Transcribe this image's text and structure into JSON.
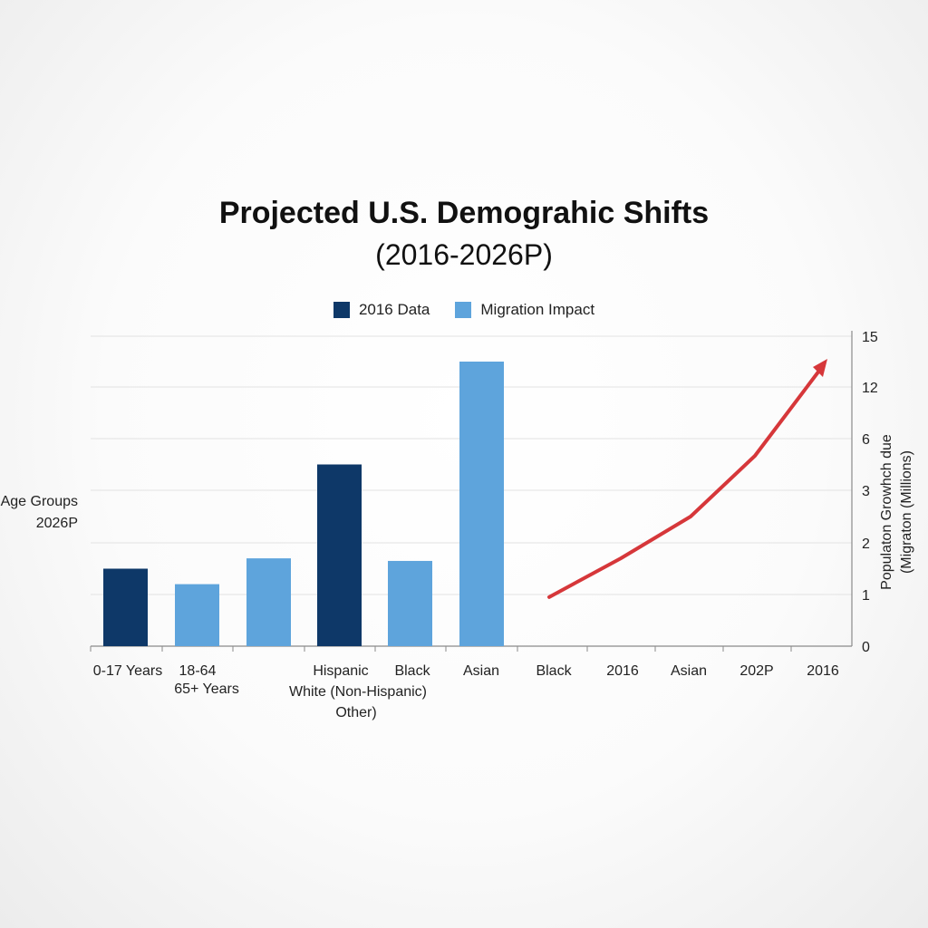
{
  "colors": {
    "dark_blue": "#0e3868",
    "light_blue": "#5ea4dc",
    "trend_red": "#d6373a",
    "grid": "#e2e2e2",
    "axis": "#8a8a8a"
  },
  "chart_data": {
    "type": "bar",
    "title": "Projected U.S. Demograhic Shifts",
    "subtitle": "(2016-2026P)",
    "legend": [
      {
        "label": "2016 Data",
        "color": "#0e3868"
      },
      {
        "label": "Migration Impact",
        "color": "#5ea4dc"
      }
    ],
    "legend_position": "top-center",
    "ylabel_left": [
      "Age Groups",
      "2026P"
    ],
    "ylabel_right": [
      "Populaton Growhch due",
      "(Migraton (Millions)"
    ],
    "y_ticks": [
      "15",
      "12",
      "6",
      "3",
      "2",
      "1",
      "0"
    ],
    "x_tick_labels": [
      {
        "lines": [
          "0-17 Years"
        ]
      },
      {
        "lines": [
          "18-64",
          "65+ Years"
        ]
      },
      {
        "lines": [
          "Hispanic",
          "White (Non-Hispanic)",
          "Other)"
        ]
      },
      {
        "lines": [
          "Black"
        ]
      },
      {
        "lines": [
          "Asian"
        ]
      },
      {
        "lines": [
          "Black"
        ]
      },
      {
        "lines": [
          "2016"
        ]
      },
      {
        "lines": [
          "Asian"
        ]
      },
      {
        "lines": [
          "202P"
        ]
      },
      {
        "lines": [
          "2016"
        ]
      }
    ],
    "bars": [
      {
        "series": "2016 Data",
        "value": 1.5
      },
      {
        "series": "Migration Impact",
        "value": 1.2
      },
      {
        "series": "Migration Impact",
        "value": 1.7
      },
      {
        "series": "2016 Data",
        "value": 4.5
      },
      {
        "series": "Migration Impact",
        "value": 1.65
      },
      {
        "series": "Migration Impact",
        "value": 13.5
      }
    ],
    "trend_line": {
      "color": "#d6373a",
      "points": [
        {
          "x": 0,
          "y": 0.95
        },
        {
          "x": 1,
          "y": 1.7
        },
        {
          "x": 2,
          "y": 2.5
        },
        {
          "x": 3,
          "y": 5
        },
        {
          "x": 4,
          "y": 13.5
        }
      ],
      "arrow": true
    },
    "grid": true
  }
}
